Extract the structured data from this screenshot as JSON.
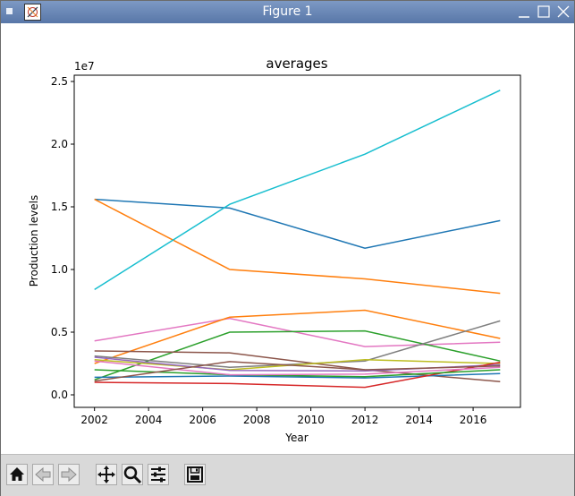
{
  "window": {
    "title": "Figure 1"
  },
  "toolbar": {
    "buttons": [
      {
        "name": "home-icon"
      },
      {
        "name": "back-arrow-icon"
      },
      {
        "name": "forward-arrow-icon"
      },
      {
        "name": "pan-icon"
      },
      {
        "name": "zoom-icon"
      },
      {
        "name": "configure-subplots-icon"
      },
      {
        "name": "save-icon"
      }
    ]
  },
  "chart_data": {
    "type": "line",
    "title": "averages",
    "xlabel": "Year",
    "ylabel": "Production levels",
    "y_offset_label": "1e7",
    "xlim": [
      2001.25,
      2017.75
    ],
    "ylim": [
      -0.1,
      2.55
    ],
    "xticks": [
      "2002",
      "2004",
      "2006",
      "2008",
      "2010",
      "2012",
      "2014",
      "2016"
    ],
    "yticks": [
      "0.0",
      "0.5",
      "1.0",
      "1.5",
      "2.0",
      "2.5"
    ],
    "x": [
      2002,
      2007,
      2012,
      2017
    ],
    "grid": false,
    "legend": "none",
    "series": [
      {
        "color": "#1f77b4",
        "values": [
          1.56,
          1.49,
          1.17,
          1.39
        ]
      },
      {
        "color": "#ff7f0e",
        "values": [
          1.56,
          1.0,
          0.925,
          0.81
        ]
      },
      {
        "color": "#17becf",
        "values": [
          0.84,
          1.52,
          1.92,
          2.43
        ]
      },
      {
        "color": "#e377c2",
        "values": [
          0.43,
          0.61,
          0.385,
          0.42
        ]
      },
      {
        "color": "#ff7f0e",
        "values": [
          0.25,
          0.62,
          0.675,
          0.45
        ]
      },
      {
        "color": "#2ca02c",
        "values": [
          0.12,
          0.5,
          0.51,
          0.27
        ]
      },
      {
        "color": "#7f7f7f",
        "values": [
          0.31,
          0.22,
          0.27,
          0.59
        ]
      },
      {
        "color": "#8c564b",
        "values": [
          0.35,
          0.335,
          0.2,
          0.105
        ]
      },
      {
        "color": "#bcbd22",
        "values": [
          0.28,
          0.2,
          0.28,
          0.25
        ]
      },
      {
        "color": "#9467bd",
        "values": [
          0.3,
          0.195,
          0.19,
          0.24
        ]
      },
      {
        "color": "#1f77b4",
        "values": [
          0.14,
          0.15,
          0.135,
          0.17
        ]
      },
      {
        "color": "#d62728",
        "values": [
          0.1,
          0.09,
          0.06,
          0.26
        ]
      },
      {
        "color": "#2ca02c",
        "values": [
          0.2,
          0.16,
          0.145,
          0.2
        ]
      },
      {
        "color": "#e377c2",
        "values": [
          0.27,
          0.16,
          0.165,
          0.22
        ]
      },
      {
        "color": "#8c564b",
        "values": [
          0.11,
          0.265,
          0.2,
          0.23
        ]
      }
    ]
  }
}
